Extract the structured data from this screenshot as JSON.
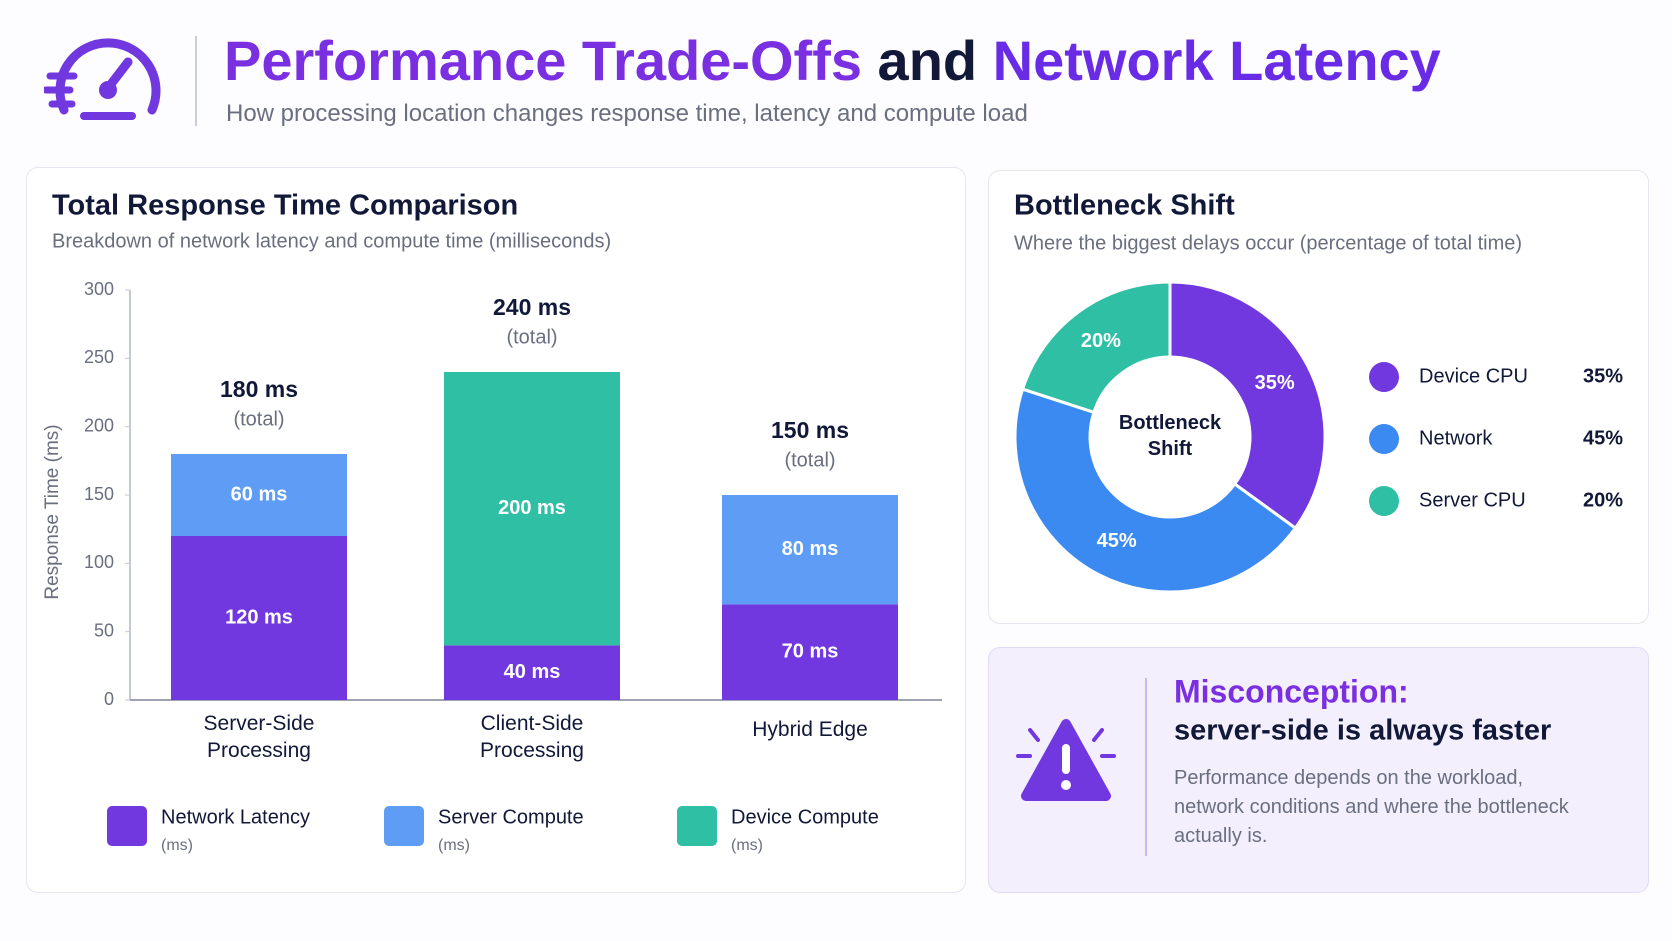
{
  "header": {
    "title_parts": [
      "Performance Trade-Offs",
      "and",
      "Network Latency"
    ],
    "subtitle": "How processing location changes response time, latency and compute load"
  },
  "chart_data": [
    {
      "type": "bar",
      "stacked": true,
      "title": "Total Response Time Comparison",
      "subtitle": "Breakdown of network latency and compute time (milliseconds)",
      "y_label": "Response Time (ms)",
      "categories": [
        "Server-Side Processing",
        "Client-Side Processing",
        "Hybrid Edge"
      ],
      "series": [
        {
          "name": "Network Latency",
          "color": "#7138e0",
          "values": [
            120,
            40,
            70
          ],
          "value_labels": [
            "120 ms",
            "40 ms",
            "70 ms"
          ]
        },
        {
          "name": "Server Compute",
          "color": "#5e9cf5",
          "values": [
            60,
            null,
            80
          ],
          "value_labels": [
            "60 ms",
            null,
            "80 ms"
          ]
        },
        {
          "name": "Device Compute",
          "color": "#2ebfa5",
          "values": [
            null,
            200,
            null
          ],
          "value_labels": [
            null,
            "200 ms",
            null
          ]
        }
      ],
      "total_labels": [
        "180 ms",
        "240 ms",
        "150 ms"
      ],
      "total_note": "(total)",
      "legend_unit": "(ms)",
      "ylim": [
        0,
        300
      ],
      "yticks": [
        0,
        50,
        100,
        150,
        200,
        250,
        300
      ]
    },
    {
      "type": "pie",
      "title": "Bottleneck Shift",
      "subtitle": "Where the biggest delays occur (percentage of total time)",
      "center_label": "Bottleneck Shift",
      "categories": [
        "Device CPU",
        "Network",
        "Server CPU"
      ],
      "values": [
        35,
        45,
        20
      ],
      "value_labels": [
        "35%",
        "45%",
        "20%"
      ],
      "colors": [
        "#7138e0",
        "#3b8af2",
        "#2ebfa5"
      ]
    }
  ],
  "callout": {
    "title": "Misconception:",
    "subtitle": "server-side is always faster",
    "body": "Performance depends on the workload, network conditions and where the bottleneck actually is."
  }
}
